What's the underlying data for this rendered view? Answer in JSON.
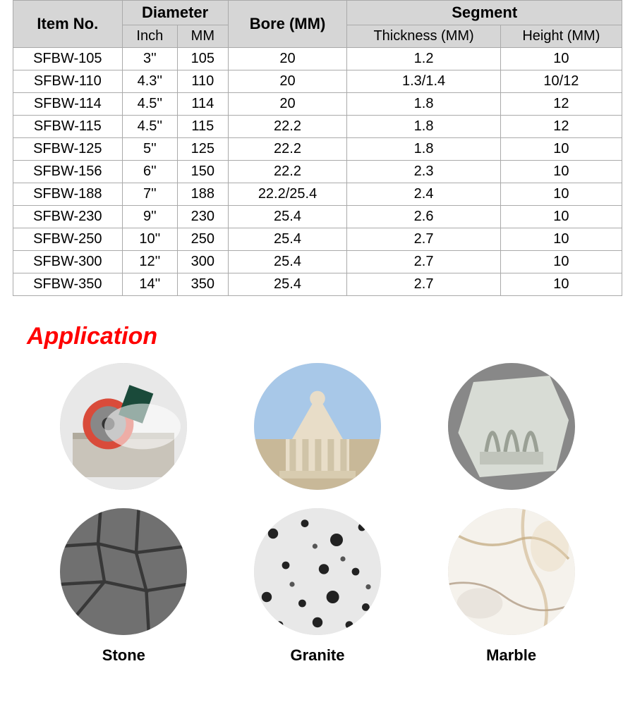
{
  "table": {
    "headers": {
      "item_no": "Item No.",
      "diameter": "Diameter",
      "diameter_inch": "Inch",
      "diameter_mm": "MM",
      "bore": "Bore (MM)",
      "segment": "Segment",
      "segment_thickness": "Thickness (MM)",
      "segment_height": "Height (MM)"
    },
    "rows": [
      {
        "item": "SFBW-105",
        "inch": "3''",
        "mm": "105",
        "bore": "20",
        "thick": "1.2",
        "height": "10"
      },
      {
        "item": "SFBW-110",
        "inch": "4.3''",
        "mm": "110",
        "bore": "20",
        "thick": "1.3/1.4",
        "height": "10/12"
      },
      {
        "item": "SFBW-114",
        "inch": "4.5''",
        "mm": "114",
        "bore": "20",
        "thick": "1.8",
        "height": "12"
      },
      {
        "item": "SFBW-115",
        "inch": "4.5''",
        "mm": "115",
        "bore": "22.2",
        "thick": "1.8",
        "height": "12"
      },
      {
        "item": "SFBW-125",
        "inch": "5''",
        "mm": "125",
        "bore": "22.2",
        "thick": "1.8",
        "height": "10"
      },
      {
        "item": "SFBW-156",
        "inch": "6''",
        "mm": "150",
        "bore": "22.2",
        "thick": "2.3",
        "height": "10"
      },
      {
        "item": "SFBW-188",
        "inch": "7''",
        "mm": "188",
        "bore": "22.2/25.4",
        "thick": "2.4",
        "height": "10"
      },
      {
        "item": "SFBW-230",
        "inch": "9''",
        "mm": "230",
        "bore": "25.4",
        "thick": "2.6",
        "height": "10"
      },
      {
        "item": "SFBW-250",
        "inch": "10''",
        "mm": "250",
        "bore": "25.4",
        "thick": "2.7",
        "height": "10"
      },
      {
        "item": "SFBW-300",
        "inch": "12''",
        "mm": "300",
        "bore": "25.4",
        "thick": "2.7",
        "height": "10"
      },
      {
        "item": "SFBW-350",
        "inch": "14''",
        "mm": "350",
        "bore": "25.4",
        "thick": "2.7",
        "height": "10"
      }
    ],
    "header_bg": "#d6d6d6",
    "border_color": "#aaaaaa"
  },
  "application": {
    "title": "Application",
    "title_color": "#ff0000",
    "items": [
      {
        "label": "Stone",
        "icons": [
          "stone-cutting-icon",
          "stone-texture-icon"
        ]
      },
      {
        "label": "Granite",
        "icons": [
          "granite-building-icon",
          "granite-texture-icon"
        ]
      },
      {
        "label": "Marble",
        "icons": [
          "marble-carving-icon",
          "marble-texture-icon"
        ]
      }
    ]
  }
}
